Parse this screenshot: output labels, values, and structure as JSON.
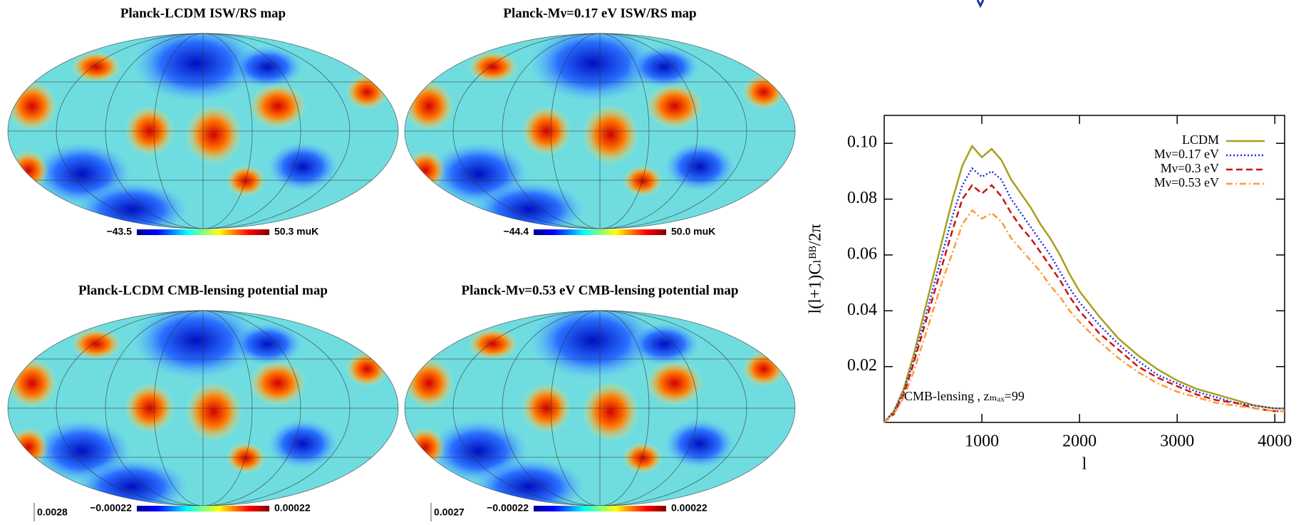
{
  "maps": [
    {
      "title": "Planck-LCDM ISW/RS map",
      "cbar_min": "−43.5",
      "cbar_max": "50.3 muK"
    },
    {
      "title": "Planck-Mν=0.17 eV ISW/RS map",
      "cbar_min": "−44.4",
      "cbar_max": "50.0 muK"
    },
    {
      "title": "Planck-LCDM CMB-lensing potential map",
      "cbar_min": "−0.00022",
      "cbar_max": "0.00022",
      "scale_label": "0.0028"
    },
    {
      "title": "Planck-Mν=0.53 eV CMB-lensing potential map",
      "cbar_min": "−0.00022",
      "cbar_max": "0.00022",
      "scale_label": "0.0027"
    }
  ],
  "chart_data": {
    "type": "line",
    "xlabel": "l",
    "ylabel": "l(l+1)Cₗᴮᴮ/2π",
    "annotation": "CMB-lensing , zₘₐₓ=99",
    "xlim": [
      0,
      4100
    ],
    "ylim": [
      0,
      0.11
    ],
    "xticks": [
      1000,
      2000,
      3000,
      4000
    ],
    "yticks": [
      {
        "value": 0.02,
        "label": "0.02"
      },
      {
        "value": 0.04,
        "label": "0.04"
      },
      {
        "value": 0.06,
        "label": "0.06"
      },
      {
        "value": 0.08,
        "label": "0.08"
      },
      {
        "value": 0.1,
        "label": "0.10"
      }
    ],
    "legend": "upper right",
    "x": [
      0,
      100,
      200,
      300,
      400,
      500,
      600,
      700,
      800,
      900,
      1000,
      1100,
      1200,
      1300,
      1400,
      1500,
      1600,
      1700,
      1800,
      1900,
      2000,
      2200,
      2400,
      2600,
      2800,
      3000,
      3200,
      3400,
      3600,
      3800,
      4000,
      4100
    ],
    "series": [
      {
        "name": "LCDM",
        "color": "#a89f1c",
        "style": "solid",
        "values": [
          0,
          0.004,
          0.012,
          0.024,
          0.038,
          0.052,
          0.066,
          0.08,
          0.092,
          0.099,
          0.095,
          0.098,
          0.094,
          0.087,
          0.082,
          0.077,
          0.071,
          0.066,
          0.06,
          0.053,
          0.047,
          0.038,
          0.03,
          0.024,
          0.019,
          0.015,
          0.012,
          0.01,
          0.008,
          0.006,
          0.005,
          0.005
        ]
      },
      {
        "name": "Mν=0.17 eV",
        "color": "#1f2fe0",
        "style": "dotted",
        "values": [
          0,
          0.004,
          0.011,
          0.022,
          0.035,
          0.048,
          0.061,
          0.074,
          0.085,
          0.091,
          0.088,
          0.09,
          0.087,
          0.08,
          0.075,
          0.07,
          0.065,
          0.06,
          0.054,
          0.048,
          0.043,
          0.035,
          0.028,
          0.022,
          0.017,
          0.014,
          0.011,
          0.009,
          0.007,
          0.006,
          0.005,
          0.005
        ]
      },
      {
        "name": "Mν=0.3 eV",
        "color": "#cc1111",
        "style": "dashed",
        "values": [
          0,
          0.003,
          0.01,
          0.021,
          0.033,
          0.045,
          0.057,
          0.069,
          0.08,
          0.085,
          0.082,
          0.085,
          0.081,
          0.075,
          0.07,
          0.066,
          0.061,
          0.056,
          0.051,
          0.045,
          0.04,
          0.032,
          0.026,
          0.02,
          0.016,
          0.013,
          0.01,
          0.008,
          0.007,
          0.005,
          0.004,
          0.004
        ]
      },
      {
        "name": "Mν=0.53 eV",
        "color": "#ff9933",
        "style": "dashdot",
        "values": [
          0,
          0.003,
          0.009,
          0.018,
          0.029,
          0.04,
          0.051,
          0.061,
          0.071,
          0.076,
          0.073,
          0.075,
          0.072,
          0.066,
          0.062,
          0.058,
          0.054,
          0.049,
          0.045,
          0.04,
          0.036,
          0.029,
          0.023,
          0.018,
          0.014,
          0.011,
          0.009,
          0.007,
          0.006,
          0.005,
          0.004,
          0.004
        ]
      }
    ]
  }
}
